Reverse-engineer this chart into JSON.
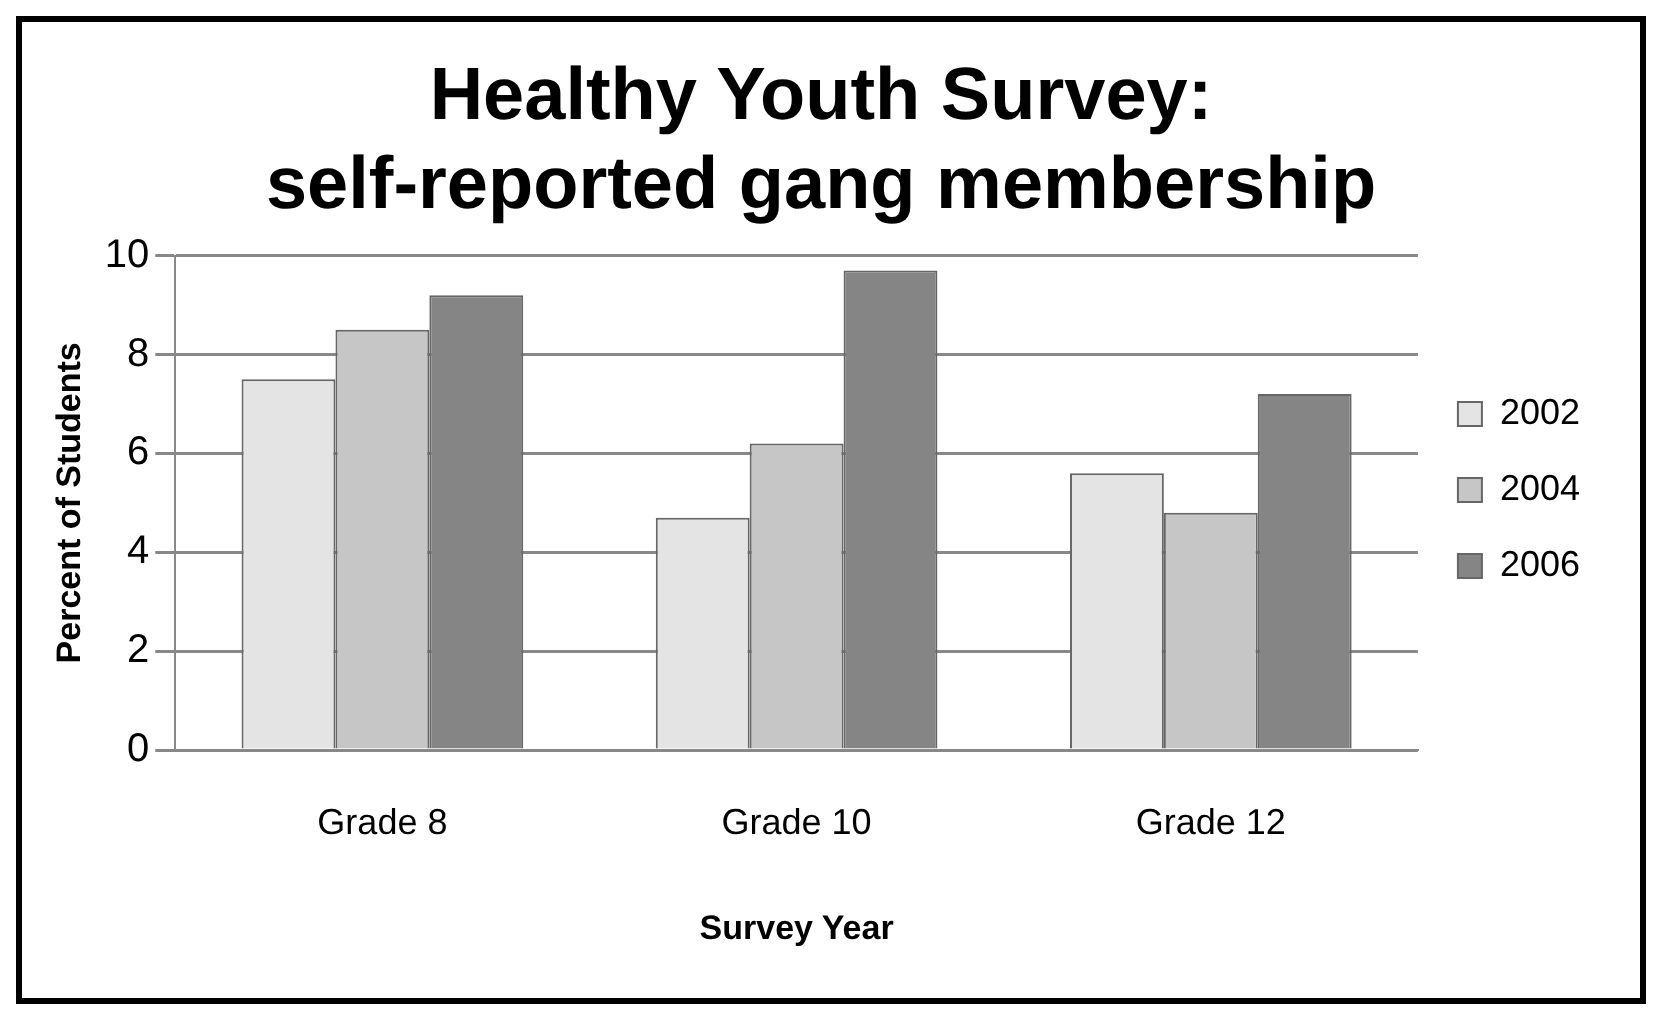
{
  "chart_data": {
    "type": "bar",
    "title": "Healthy Youth Survey:\nself-reported gang membership",
    "xlabel": "Survey Year",
    "ylabel": "Percent of Students",
    "categories": [
      "Grade 8",
      "Grade 10",
      "Grade 12"
    ],
    "series": [
      {
        "name": "2002",
        "color": "#e4e4e4",
        "values": [
          7.5,
          4.7,
          5.6
        ]
      },
      {
        "name": "2004",
        "color": "#c6c6c6",
        "values": [
          8.5,
          6.2,
          4.8
        ]
      },
      {
        "name": "2006",
        "color": "#858585",
        "values": [
          9.2,
          9.7,
          7.2
        ]
      }
    ],
    "ylim": [
      0,
      10
    ],
    "yticks": [
      0,
      2,
      4,
      6,
      8,
      10
    ],
    "grid": "y",
    "legend": "right"
  }
}
